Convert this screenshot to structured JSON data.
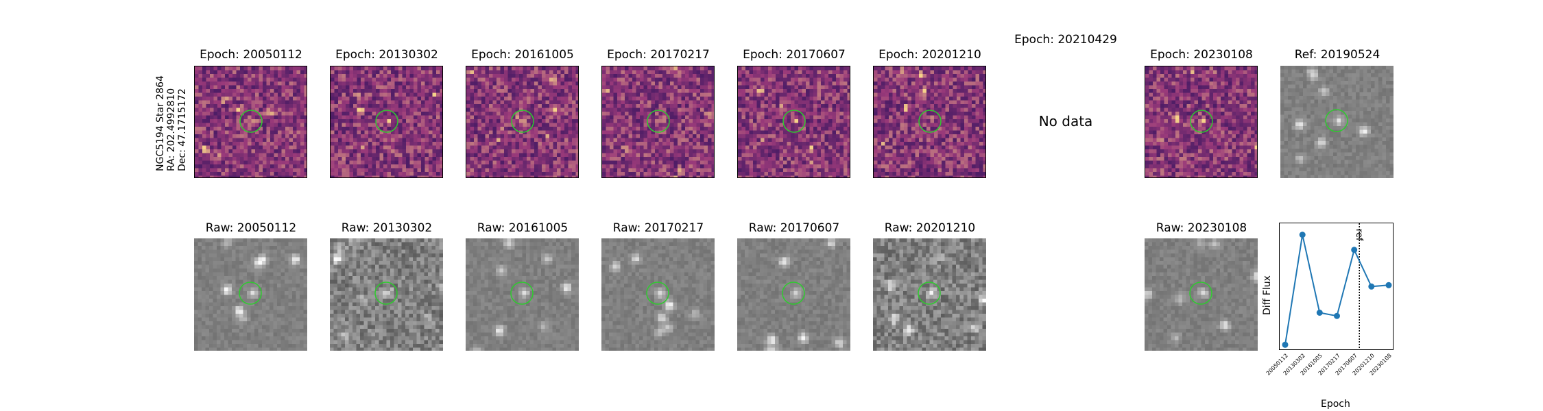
{
  "star_info": {
    "name": "NGC5194 Star 2864",
    "ra": "RA: 202.4992810",
    "dec": "Dec: 47.1715172"
  },
  "diff_panels": [
    {
      "title": "Epoch: 20050112",
      "has_data": true
    },
    {
      "title": "Epoch: 20130302",
      "has_data": true
    },
    {
      "title": "Epoch: 20161005",
      "has_data": true
    },
    {
      "title": "Epoch: 20170217",
      "has_data": true
    },
    {
      "title": "Epoch: 20170607",
      "has_data": true
    },
    {
      "title": "Epoch: 20201210",
      "has_data": true
    },
    {
      "title": "Epoch: 20210429",
      "has_data": false,
      "no_data_text": "No data"
    },
    {
      "title": "Epoch: 20230108",
      "has_data": true
    }
  ],
  "ref_panel": {
    "title": "Ref: 20190524"
  },
  "raw_panels": [
    {
      "title": "Raw: 20050112"
    },
    {
      "title": "Raw: 20130302"
    },
    {
      "title": "Raw: 20161005"
    },
    {
      "title": "Raw: 20170217"
    },
    {
      "title": "Raw: 20170607"
    },
    {
      "title": "Raw: 20201210"
    },
    {
      "title": "Raw: 20230108"
    }
  ],
  "colors": {
    "circle": "#2ecc2e",
    "series": "#1f77b4",
    "diff_dark": "#2a0f5c",
    "diff_mid": "#9a3a7a",
    "diff_bright": "#f6d28a"
  },
  "chart_data": {
    "type": "line",
    "title": "",
    "xlabel": "Epoch",
    "ylabel": "Diff Flux",
    "categories": [
      "20050112",
      "20130302",
      "20161005",
      "20170217",
      "20170607",
      "20201210",
      "20230108"
    ],
    "series": [
      {
        "name": "Diff Flux",
        "values": [
          -0.45,
          1.95,
          0.25,
          0.18,
          1.62,
          0.82,
          0.85
        ]
      }
    ],
    "ylim": [
      -0.55,
      2.2
    ],
    "ref_line": {
      "label": "ref",
      "x": 4.3
    },
    "grid": false,
    "legend": "none"
  }
}
